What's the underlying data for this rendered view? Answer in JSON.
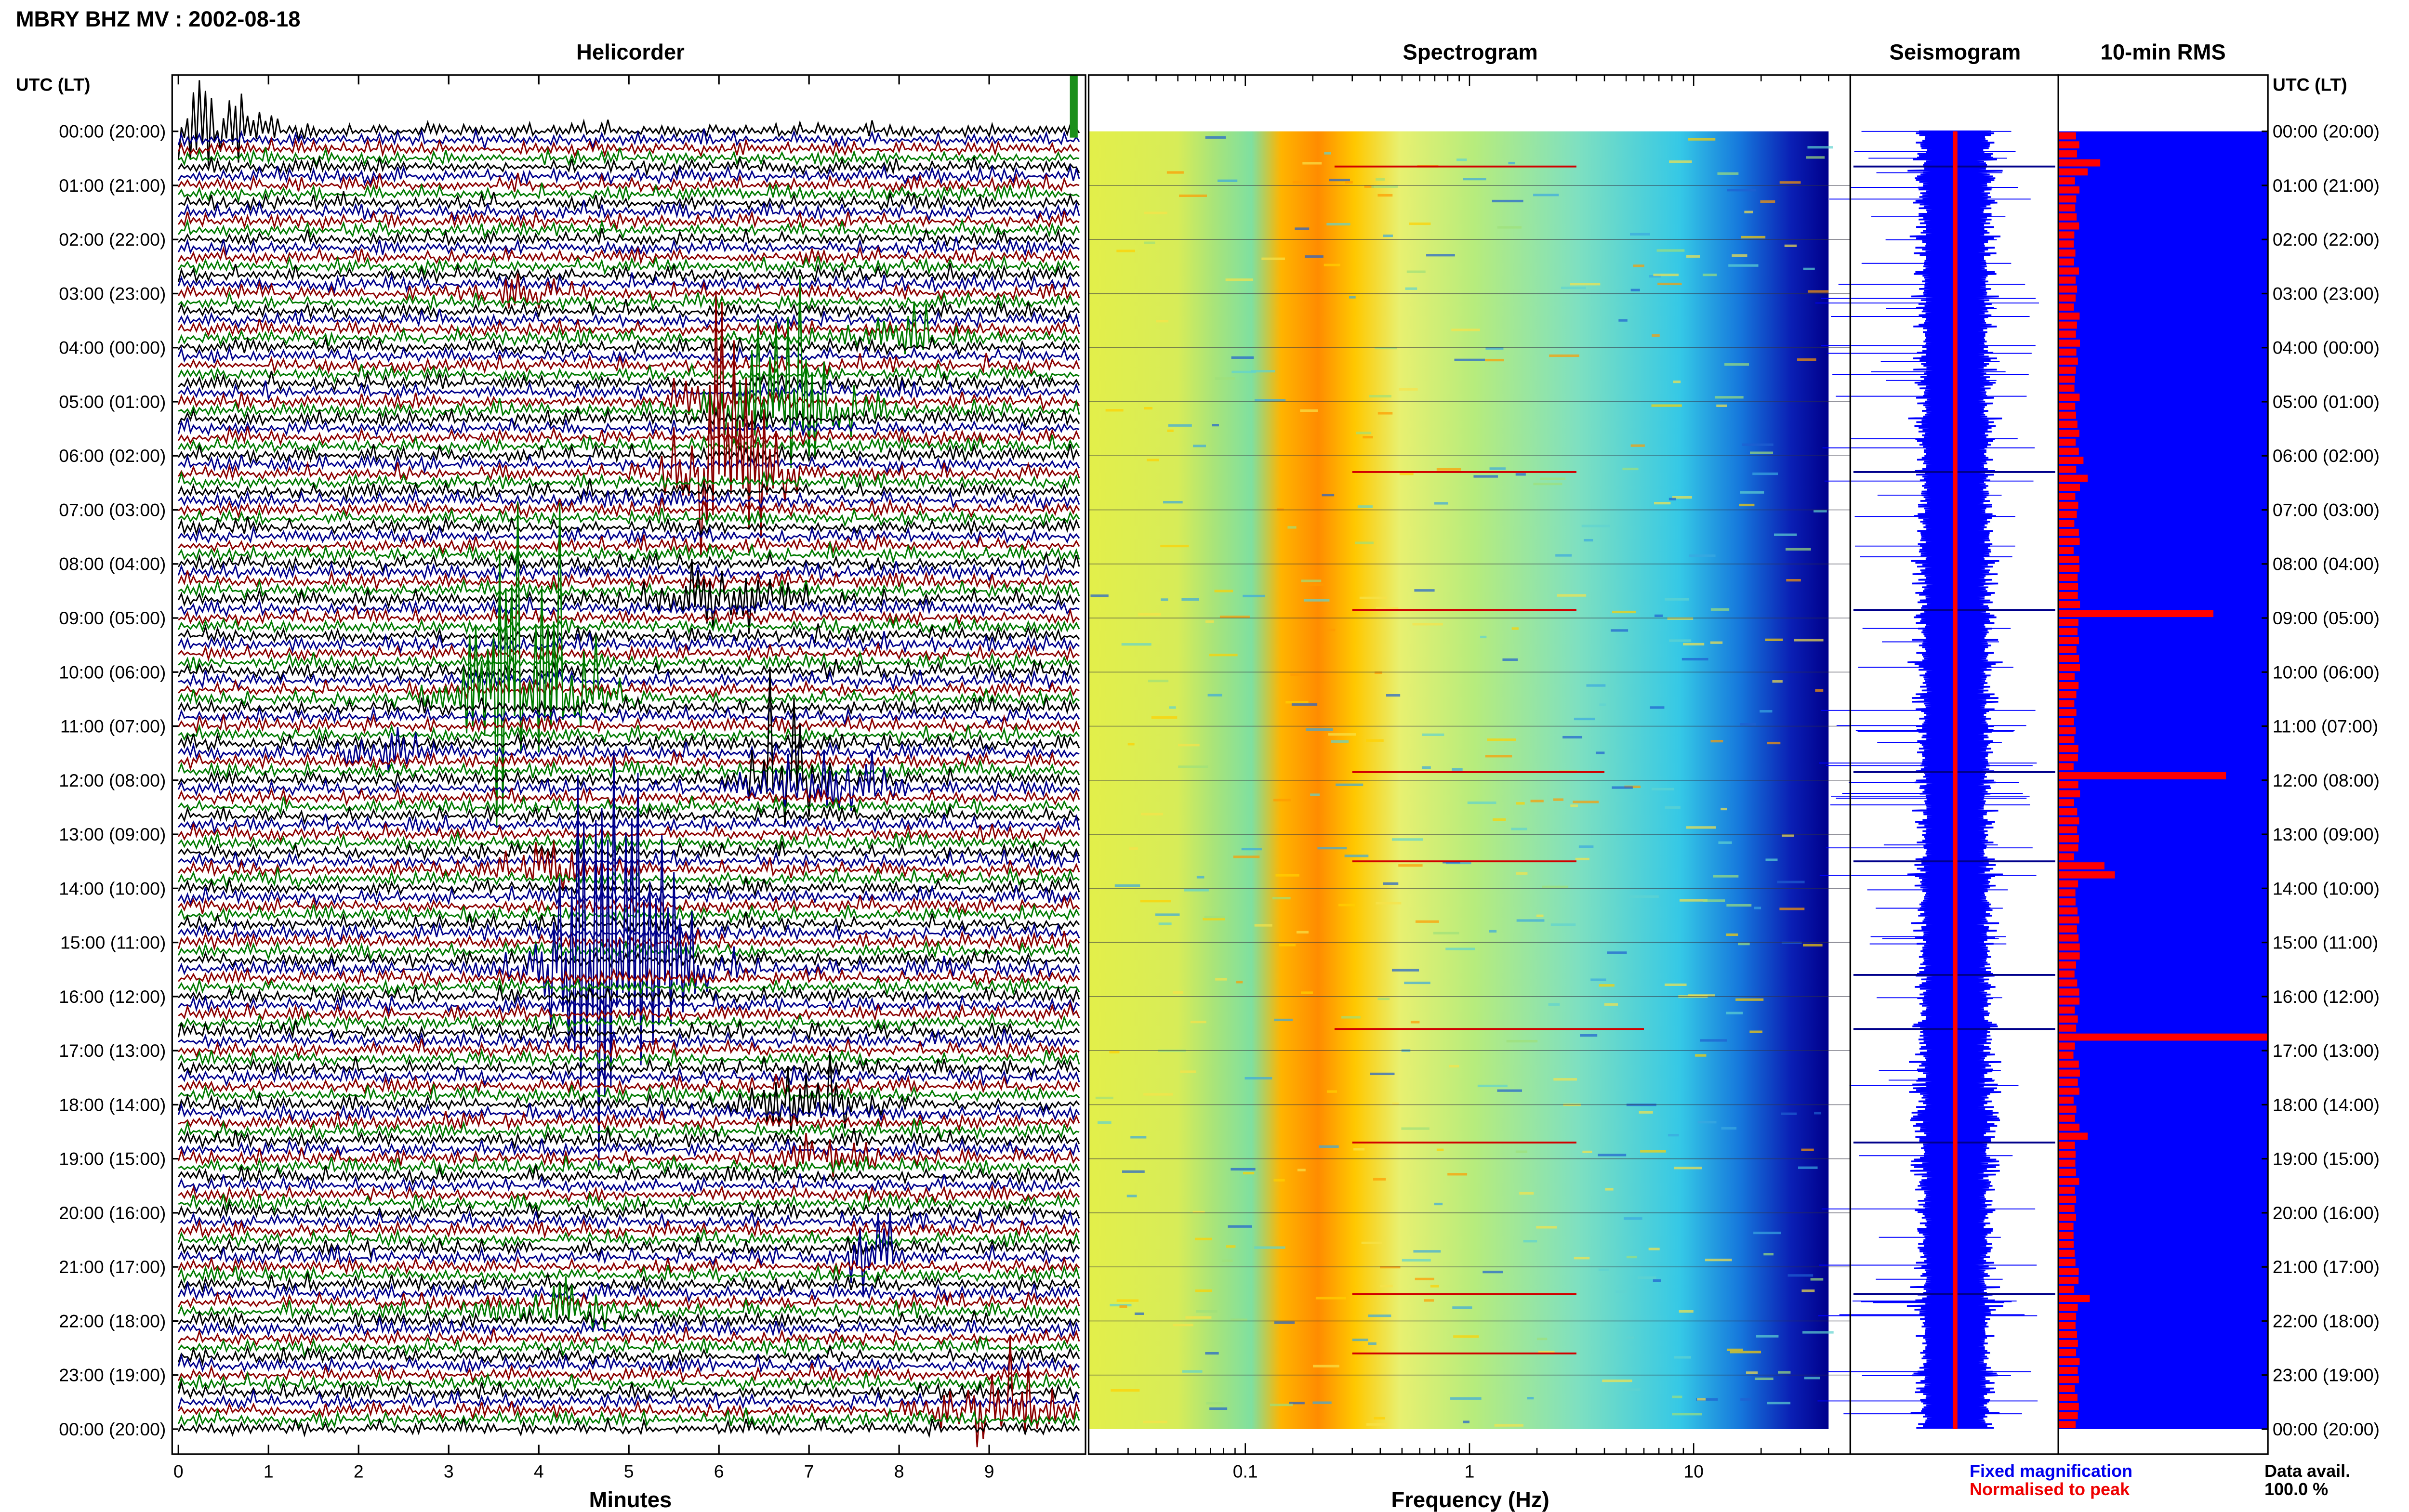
{
  "title": "MBRY BHZ MV : 2002-08-18",
  "time_axis_header": "UTC (LT)",
  "panel_titles": {
    "helicorder": "Helicorder",
    "spectrogram": "Spectrogram",
    "seismogram": "Seismogram",
    "rms": "10-min RMS"
  },
  "legend": {
    "fixed": "Fixed magnification",
    "fixed_color": "#0000ee",
    "normalised": "Normalised to peak",
    "normalised_color": "#ee0000",
    "data_avail_label": "Data avail.",
    "data_avail_value": "100.0 %"
  },
  "colors": {
    "trace_cycle": [
      "#000000",
      "#00008b",
      "#8b0000",
      "#007a00"
    ],
    "seismogram": "#0000ff",
    "seismogram_line": "#ff0000",
    "rms_bg": "#0000ff",
    "rms_bar": "#ff0000"
  },
  "chart_data": [
    {
      "type": "line",
      "name": "helicorder",
      "title": "Helicorder",
      "xlabel": "Minutes",
      "x_ticks": [
        "0",
        "1",
        "2",
        "3",
        "4",
        "5",
        "6",
        "7",
        "8",
        "9"
      ],
      "xlim": [
        0,
        10
      ],
      "y_tick_labels": [
        "00:00 (20:00)",
        "01:00 (21:00)",
        "02:00 (22:00)",
        "03:00 (23:00)",
        "04:00 (00:00)",
        "05:00 (01:00)",
        "06:00 (02:00)",
        "07:00 (03:00)",
        "08:00 (04:00)",
        "09:00 (05:00)",
        "10:00 (06:00)",
        "11:00 (07:00)",
        "12:00 (08:00)",
        "13:00 (09:00)",
        "14:00 (10:00)",
        "15:00 (11:00)",
        "16:00 (12:00)",
        "17:00 (13:00)",
        "18:00 (14:00)",
        "19:00 (15:00)",
        "20:00 (16:00)",
        "21:00 (17:00)",
        "22:00 (18:00)",
        "23:00 (19:00)",
        "00:00 (20:00)"
      ],
      "traces_per_hour": 6,
      "events": [
        {
          "hour": 0.0,
          "minute": 0.3,
          "amp": 2.4,
          "w": 0.5
        },
        {
          "hour": 3.0,
          "minute": 3.8,
          "amp": 0.5,
          "w": 0.3
        },
        {
          "hour": 3.8,
          "minute": 8.1,
          "amp": 0.9,
          "w": 0.4
        },
        {
          "hour": 5.0,
          "minute": 5.7,
          "amp": 1.0,
          "w": 0.2
        },
        {
          "hour": 5.2,
          "minute": 6.8,
          "amp": 2.8,
          "w": 0.5
        },
        {
          "hour": 6.4,
          "minute": 6.1,
          "amp": 6.5,
          "w": 0.35
        },
        {
          "hour": 8.7,
          "minute": 6.0,
          "amp": 1.4,
          "w": 0.5
        },
        {
          "hour": 10.5,
          "minute": 3.8,
          "amp": 8.0,
          "w": 0.45
        },
        {
          "hour": 11.5,
          "minute": 2.2,
          "amp": 1.0,
          "w": 0.3
        },
        {
          "hour": 12.0,
          "minute": 6.7,
          "amp": 3.0,
          "w": 0.25
        },
        {
          "hour": 12.2,
          "minute": 7.3,
          "amp": 1.3,
          "w": 0.5
        },
        {
          "hour": 13.6,
          "minute": 4.1,
          "amp": 1.0,
          "w": 0.4
        },
        {
          "hour": 15.5,
          "minute": 4.8,
          "amp": 9.0,
          "w": 0.5
        },
        {
          "hour": 18.0,
          "minute": 7.0,
          "amp": 2.3,
          "w": 0.35
        },
        {
          "hour": 19.0,
          "minute": 7.2,
          "amp": 0.8,
          "w": 0.3
        },
        {
          "hour": 20.8,
          "minute": 7.7,
          "amp": 3.5,
          "w": 0.15
        },
        {
          "hour": 21.8,
          "minute": 4.2,
          "amp": 1.2,
          "w": 0.4
        },
        {
          "hour": 23.6,
          "minute": 9.1,
          "amp": 1.6,
          "w": 0.5
        }
      ]
    },
    {
      "type": "heatmap",
      "name": "spectrogram",
      "title": "Spectrogram",
      "xlabel": "Frequency (Hz)",
      "x_scale": "log",
      "x_ticks": [
        "0.1",
        "1",
        "10"
      ],
      "xlim": [
        0.02,
        50
      ],
      "max_frequency_shown": 40,
      "peak_band_hz": [
        0.25,
        0.45
      ],
      "colormap": "jet",
      "narrowband_lines": [
        {
          "hour": 0.65,
          "fmin": 0.25,
          "fmax": 3
        },
        {
          "hour": 6.3,
          "fmin": 0.3,
          "fmax": 3
        },
        {
          "hour": 8.85,
          "fmin": 0.3,
          "fmax": 3
        },
        {
          "hour": 11.85,
          "fmin": 0.3,
          "fmax": 4
        },
        {
          "hour": 13.5,
          "fmin": 0.3,
          "fmax": 3
        },
        {
          "hour": 16.6,
          "fmin": 0.25,
          "fmax": 6
        },
        {
          "hour": 18.7,
          "fmin": 0.3,
          "fmax": 3
        },
        {
          "hour": 21.5,
          "fmin": 0.3,
          "fmax": 3
        },
        {
          "hour": 22.6,
          "fmin": 0.3,
          "fmax": 3
        }
      ]
    },
    {
      "type": "line",
      "name": "seismogram",
      "title": "Seismogram",
      "spike_hours": [
        0.65,
        6.3,
        8.85,
        11.85,
        13.5,
        15.6,
        16.6,
        18.7,
        21.5
      ]
    },
    {
      "type": "bar",
      "name": "rms",
      "title": "10-min RMS",
      "interval_minutes": 10,
      "baseline_fraction": 0.09,
      "peaks": [
        {
          "hour": 0.15,
          "value": 0.1
        },
        {
          "hour": 0.5,
          "value": 0.2
        },
        {
          "hour": 0.7,
          "value": 0.14
        },
        {
          "hour": 5.95,
          "value": 0.12
        },
        {
          "hour": 6.35,
          "value": 0.14
        },
        {
          "hour": 8.85,
          "value": 0.74
        },
        {
          "hour": 11.9,
          "value": 0.8
        },
        {
          "hour": 13.45,
          "value": 0.22
        },
        {
          "hour": 13.6,
          "value": 0.27
        },
        {
          "hour": 15.9,
          "value": 0.1
        },
        {
          "hour": 16.6,
          "value": 1.0
        },
        {
          "hour": 18.55,
          "value": 0.14
        },
        {
          "hour": 21.45,
          "value": 0.15
        }
      ]
    }
  ]
}
